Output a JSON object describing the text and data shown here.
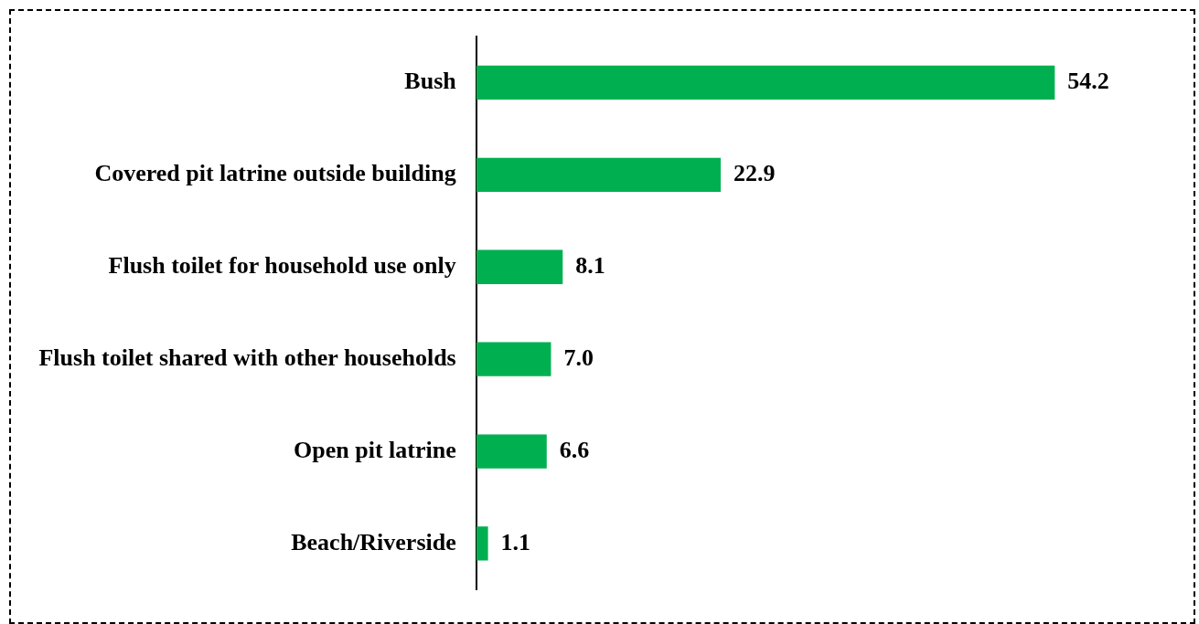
{
  "chart_data": {
    "type": "bar",
    "orientation": "horizontal",
    "categories": [
      "Bush",
      "Covered pit latrine outside building",
      "Flush toilet for household use only",
      "Flush toilet shared with other households",
      "Open pit latrine",
      "Beach/Riverside"
    ],
    "values": [
      54.2,
      22.9,
      8.1,
      7.0,
      6.6,
      1.1
    ],
    "value_labels": [
      "54.2",
      "22.9",
      "8.1",
      "7.0",
      "6.6",
      "1.1"
    ],
    "color": "#00b050",
    "legend": false
  }
}
